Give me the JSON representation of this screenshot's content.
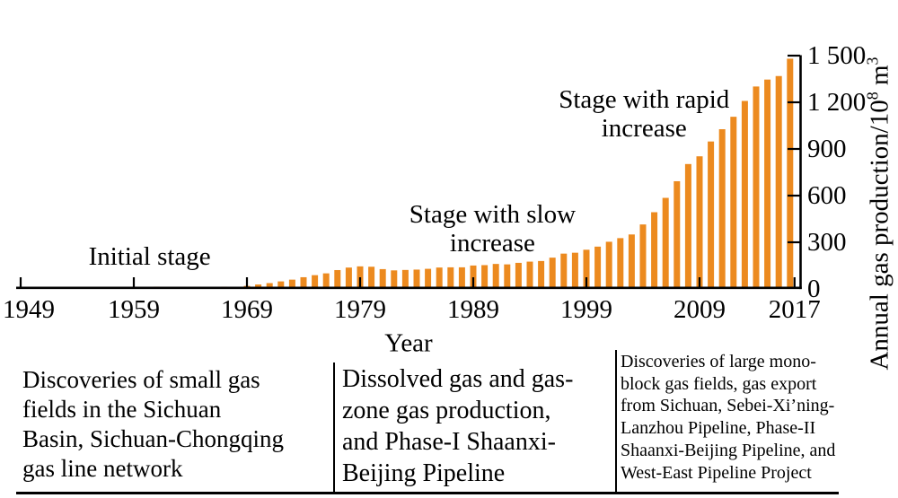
{
  "figure": {
    "bar_color": "#EC8A1F",
    "axis_color": "#000000",
    "background": "#ffffff"
  },
  "chart_data": {
    "type": "bar",
    "title": "",
    "xlabel": "Year",
    "ylabel": "Annual gas production/10⁸ m³",
    "start_year": 1949,
    "end_year": 2017,
    "values": [
      0.1,
      0.1,
      0.1,
      0.1,
      0.2,
      0.2,
      0.2,
      0.3,
      0.7,
      1.1,
      2.9,
      10.4,
      14.7,
      12.1,
      10.2,
      10.8,
      11.0,
      13.1,
      14.6,
      14.0,
      19.4,
      28.7,
      37.4,
      48.4,
      59.8,
      75.3,
      88.5,
      100.1,
      121.2,
      137.3,
      145.1,
      142.7,
      127.4,
      119.3,
      122.1,
      124.3,
      129.3,
      137.6,
      138.9,
      139.0,
      150.5,
      153.0,
      160.7,
      157.9,
      167.7,
      175.6,
      179.5,
      201.1,
      227.0,
      232.8,
      252.0,
      272.0,
      303.3,
      326.6,
      350.2,
      414.6,
      493.2,
      585.5,
      692.4,
      803.0,
      852.7,
      948.0,
      1026.9,
      1106.9,
      1208.6,
      1301.6,
      1346.1,
      1368.7,
      1480.3
    ],
    "x_axis": {
      "label": "Year",
      "ticks": [
        1949,
        1959,
        1969,
        1979,
        1989,
        1999,
        2009,
        2017
      ],
      "tick_labels": [
        "1949",
        "1959",
        "1969",
        "1979",
        "1989",
        "1999",
        "2009",
        "2017"
      ],
      "range": [
        1948.5,
        2018.5
      ]
    },
    "y_axis": {
      "title_prefix": "Annual gas production/10",
      "title_sup1": "8",
      "title_mid": " m",
      "title_sup2": "3",
      "ticks": [
        0,
        300,
        600,
        900,
        1200,
        1500
      ],
      "tick_labels": [
        "0",
        "300",
        "600",
        "900",
        "1 200",
        "1 500"
      ],
      "range": [
        0,
        1500
      ],
      "position": "right"
    },
    "grid": false,
    "legend": false,
    "annotations": [
      {
        "text": "Initial stage",
        "year": 1960.4,
        "value": 208
      },
      {
        "text": "Stage with slow\nincrease",
        "year": 1990.7,
        "value": 386
      },
      {
        "text": "Stage with rapid\nincrease",
        "year": 2004.1,
        "value": 1125
      }
    ]
  },
  "stage_table": {
    "columns": [
      {
        "text": "Discoveries of small gas\nfields in the Sichuan\nBasin, Sichuan-Chongqing\ngas line network"
      },
      {
        "text": "Dissolved gas and gas-\nzone gas production,\nand Phase-I Shaanxi-\nBeijing Pipeline"
      },
      {
        "text": "Discoveries of large mono-\nblock gas fields, gas export\nfrom Sichuan, Sebei-Xi’ning-\nLanzhou Pipeline, Phase-II\nShaanxi-Beijing Pipeline, and\nWest-East Pipeline Project"
      }
    ]
  }
}
